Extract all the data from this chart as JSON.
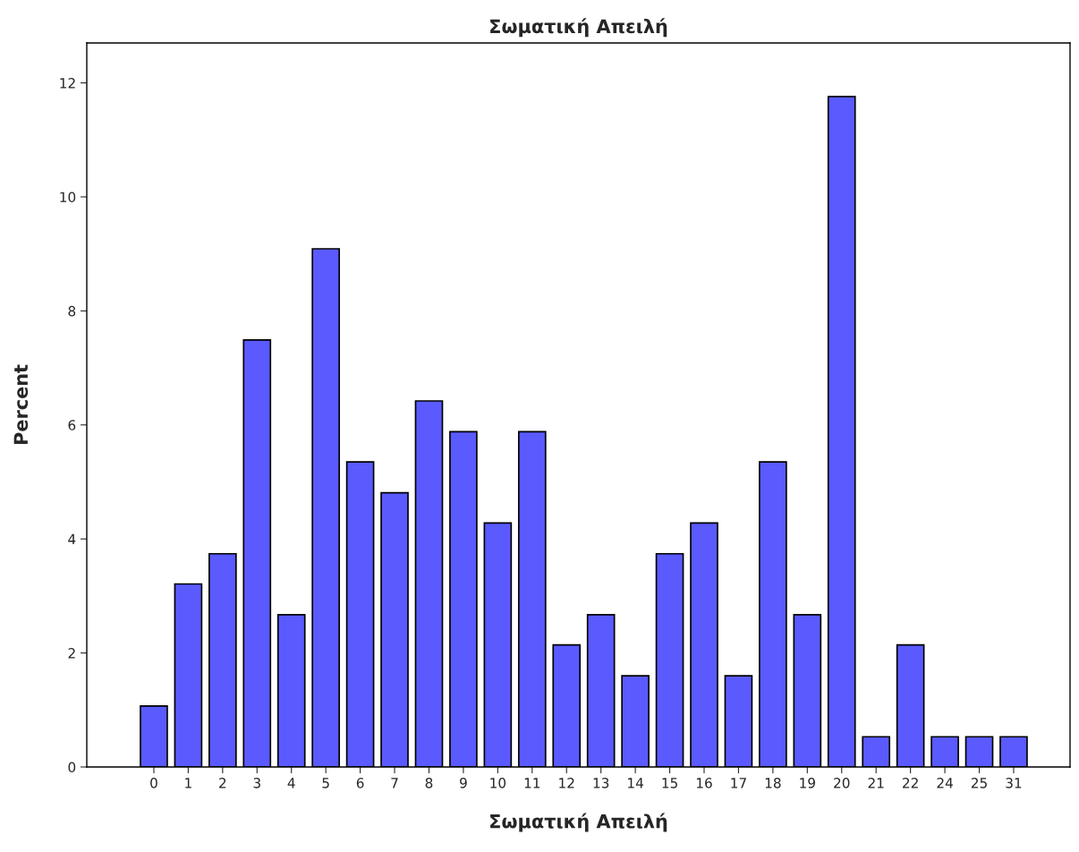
{
  "chart_data": {
    "type": "bar",
    "title": "Σωματική Απειλή",
    "xlabel": "Σωματική Απειλή",
    "ylabel": "Percent",
    "categories": [
      "0",
      "1",
      "2",
      "3",
      "4",
      "5",
      "6",
      "7",
      "8",
      "9",
      "10",
      "11",
      "12",
      "13",
      "14",
      "15",
      "16",
      "17",
      "18",
      "19",
      "20",
      "21",
      "22",
      "24",
      "25",
      "31"
    ],
    "values": [
      1.07,
      3.21,
      3.74,
      7.49,
      2.67,
      9.09,
      5.35,
      4.81,
      6.42,
      5.88,
      4.28,
      5.88,
      2.14,
      2.67,
      1.6,
      3.74,
      4.28,
      1.6,
      5.35,
      2.67,
      11.76,
      0.53,
      2.14,
      0.53,
      0.53,
      0.53
    ],
    "color": "#5a5aff",
    "ylim": [
      0,
      12.7
    ],
    "yticks": [
      0,
      2,
      4,
      6,
      8,
      10,
      12
    ],
    "grid": false
  }
}
